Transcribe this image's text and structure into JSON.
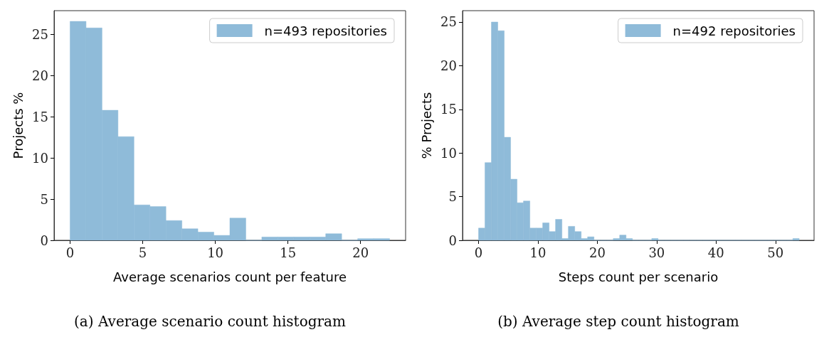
{
  "chart_data": [
    {
      "type": "histogram",
      "xlabel": "Average scenarios count per feature",
      "ylabel": "Projects %",
      "annotations": [
        "(a) Average scenario count histogram"
      ],
      "bins": [
        0,
        1.1,
        2.2,
        3.3,
        4.4,
        5.5,
        6.6,
        7.7,
        8.8,
        9.9,
        11,
        12.1,
        13.2,
        14.3,
        15.4,
        16.5,
        17.6,
        18.7,
        19.8,
        20.9,
        22
      ],
      "series": [
        {
          "name": "n=493 repositories",
          "color": "#8fbbd9",
          "values": [
            26.6,
            25.8,
            15.8,
            12.6,
            4.3,
            4.1,
            2.4,
            1.4,
            1.0,
            0.6,
            2.7,
            0,
            0.4,
            0.4,
            0.4,
            0.4,
            0.8,
            0,
            0.2,
            0.2
          ]
        }
      ],
      "xlim": [
        -1.1,
        23.1
      ],
      "xticks": [
        0,
        5,
        10,
        15,
        20
      ],
      "ylim": [
        0,
        27.9
      ],
      "yticks": [
        0,
        5,
        10,
        15,
        20,
        25
      ],
      "grid": false,
      "legend": "top right"
    },
    {
      "type": "histogram",
      "xlabel": "Steps count per scenario",
      "ylabel": "% Projects",
      "annotations": [
        "(b) Average step count histogram"
      ],
      "bins": [
        0,
        1.08,
        2.16,
        3.24,
        4.32,
        5.4,
        6.48,
        7.56,
        8.64,
        9.72,
        10.8,
        11.88,
        12.96,
        14.04,
        15.12,
        16.2,
        17.28,
        18.36,
        19.44,
        20.52,
        21.6,
        22.68,
        23.76,
        24.84,
        25.92,
        27,
        28.08,
        29.16,
        30.24,
        31.32,
        32.4,
        33.48,
        34.56,
        35.64,
        36.72,
        37.8,
        38.88,
        39.96,
        41.04,
        42.12,
        43.2,
        44.28,
        45.36,
        46.44,
        47.52,
        48.6,
        49.68,
        50.76,
        51.84,
        52.92,
        54
      ],
      "series": [
        {
          "name": "n=492 repositories",
          "color": "#8fbbd9",
          "values": [
            1.4,
            8.9,
            25.0,
            24.0,
            11.8,
            7.0,
            4.3,
            4.5,
            1.4,
            1.4,
            2.0,
            1.0,
            2.4,
            0.2,
            1.6,
            1.0,
            0.2,
            0.4,
            0,
            0,
            0,
            0.2,
            0.6,
            0.2,
            0,
            0,
            0,
            0.2,
            0,
            0,
            0,
            0,
            0,
            0,
            0,
            0,
            0,
            0,
            0,
            0,
            0,
            0,
            0,
            0,
            0,
            0,
            0,
            0,
            0,
            0.2
          ]
        }
      ],
      "xlim": [
        -2.7,
        56.5
      ],
      "xticks": [
        0,
        10,
        20,
        30,
        40,
        50
      ],
      "ylim": [
        0,
        26.3
      ],
      "yticks": [
        0,
        5,
        10,
        15,
        20,
        25
      ],
      "grid": false,
      "legend": "top right"
    }
  ]
}
